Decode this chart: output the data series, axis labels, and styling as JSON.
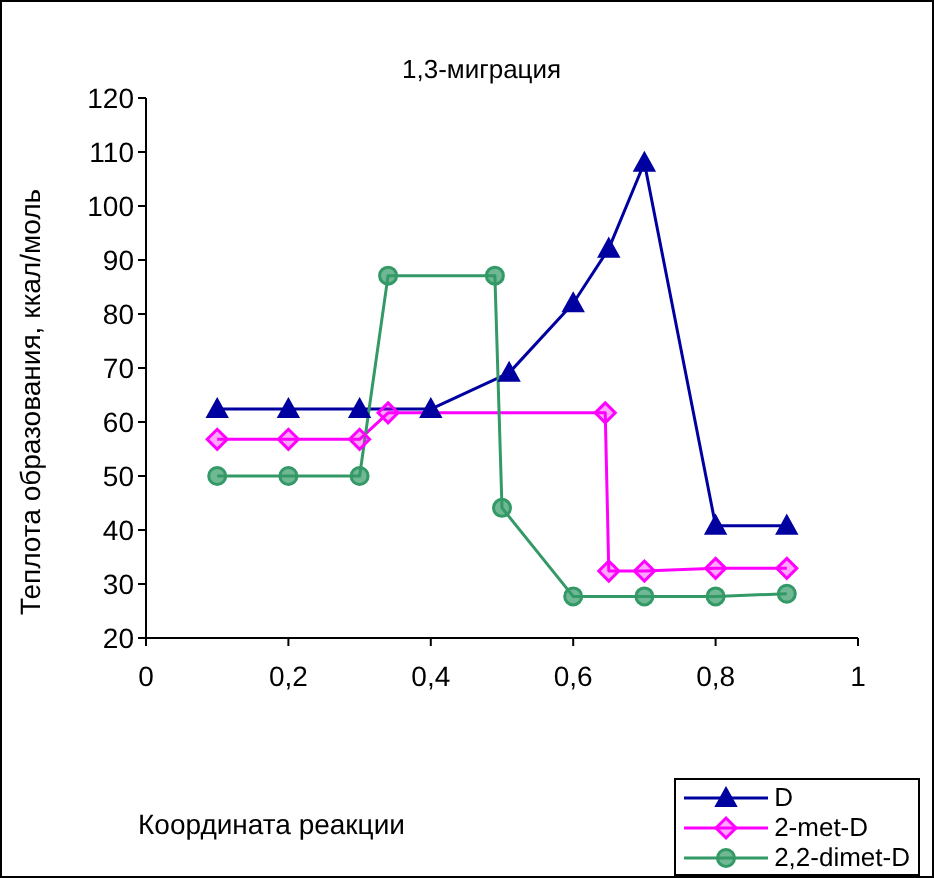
{
  "chart_data": {
    "type": "line",
    "title": "1,3-миграция",
    "xlabel": "Координата реакции",
    "ylabel": "Теплота образования, ккал/моль",
    "xlim": [
      0,
      1
    ],
    "xticks": [
      0,
      {
        "value": 0.2,
        "label": "0,2"
      },
      {
        "value": 0.4,
        "label": "0,4"
      },
      {
        "value": 0.6,
        "label": "0,6"
      },
      {
        "value": 0.8,
        "label": "0,8"
      },
      1
    ],
    "ylim": [
      20,
      120
    ],
    "yticks": [
      20,
      30,
      40,
      50,
      60,
      70,
      80,
      90,
      100,
      110,
      120
    ],
    "grid": false,
    "legend": "bottom right",
    "series": [
      {
        "name": "D",
        "color": "#0000a0",
        "marker": "triangle",
        "x": [
          0.1,
          0.2,
          0.3,
          0.4,
          0.51,
          0.6,
          0.65,
          0.7,
          0.8,
          0.9
        ],
        "values": [
          62.4,
          62.4,
          62.4,
          62.4,
          69.1,
          82,
          92.1,
          108,
          40.8,
          40.8
        ]
      },
      {
        "name": "2-met-D",
        "color": "#ff00ff",
        "marker": "diamond",
        "x": [
          0.1,
          0.2,
          0.3,
          0.34,
          0.645,
          0.65,
          0.7,
          0.8,
          0.9
        ],
        "values": [
          56.8,
          56.8,
          56.8,
          61.7,
          61.7,
          32.4,
          32.4,
          32.9,
          32.9
        ]
      },
      {
        "name": "2,2-dimet-D",
        "color": "#339966",
        "marker": "circle",
        "x": [
          0.1,
          0.2,
          0.3,
          0.34,
          0.49,
          0.5,
          0.6,
          0.7,
          0.8,
          0.9
        ],
        "values": [
          50,
          50,
          50,
          87.1,
          87.1,
          44.1,
          27.7,
          27.7,
          27.7,
          28.2
        ]
      }
    ]
  }
}
